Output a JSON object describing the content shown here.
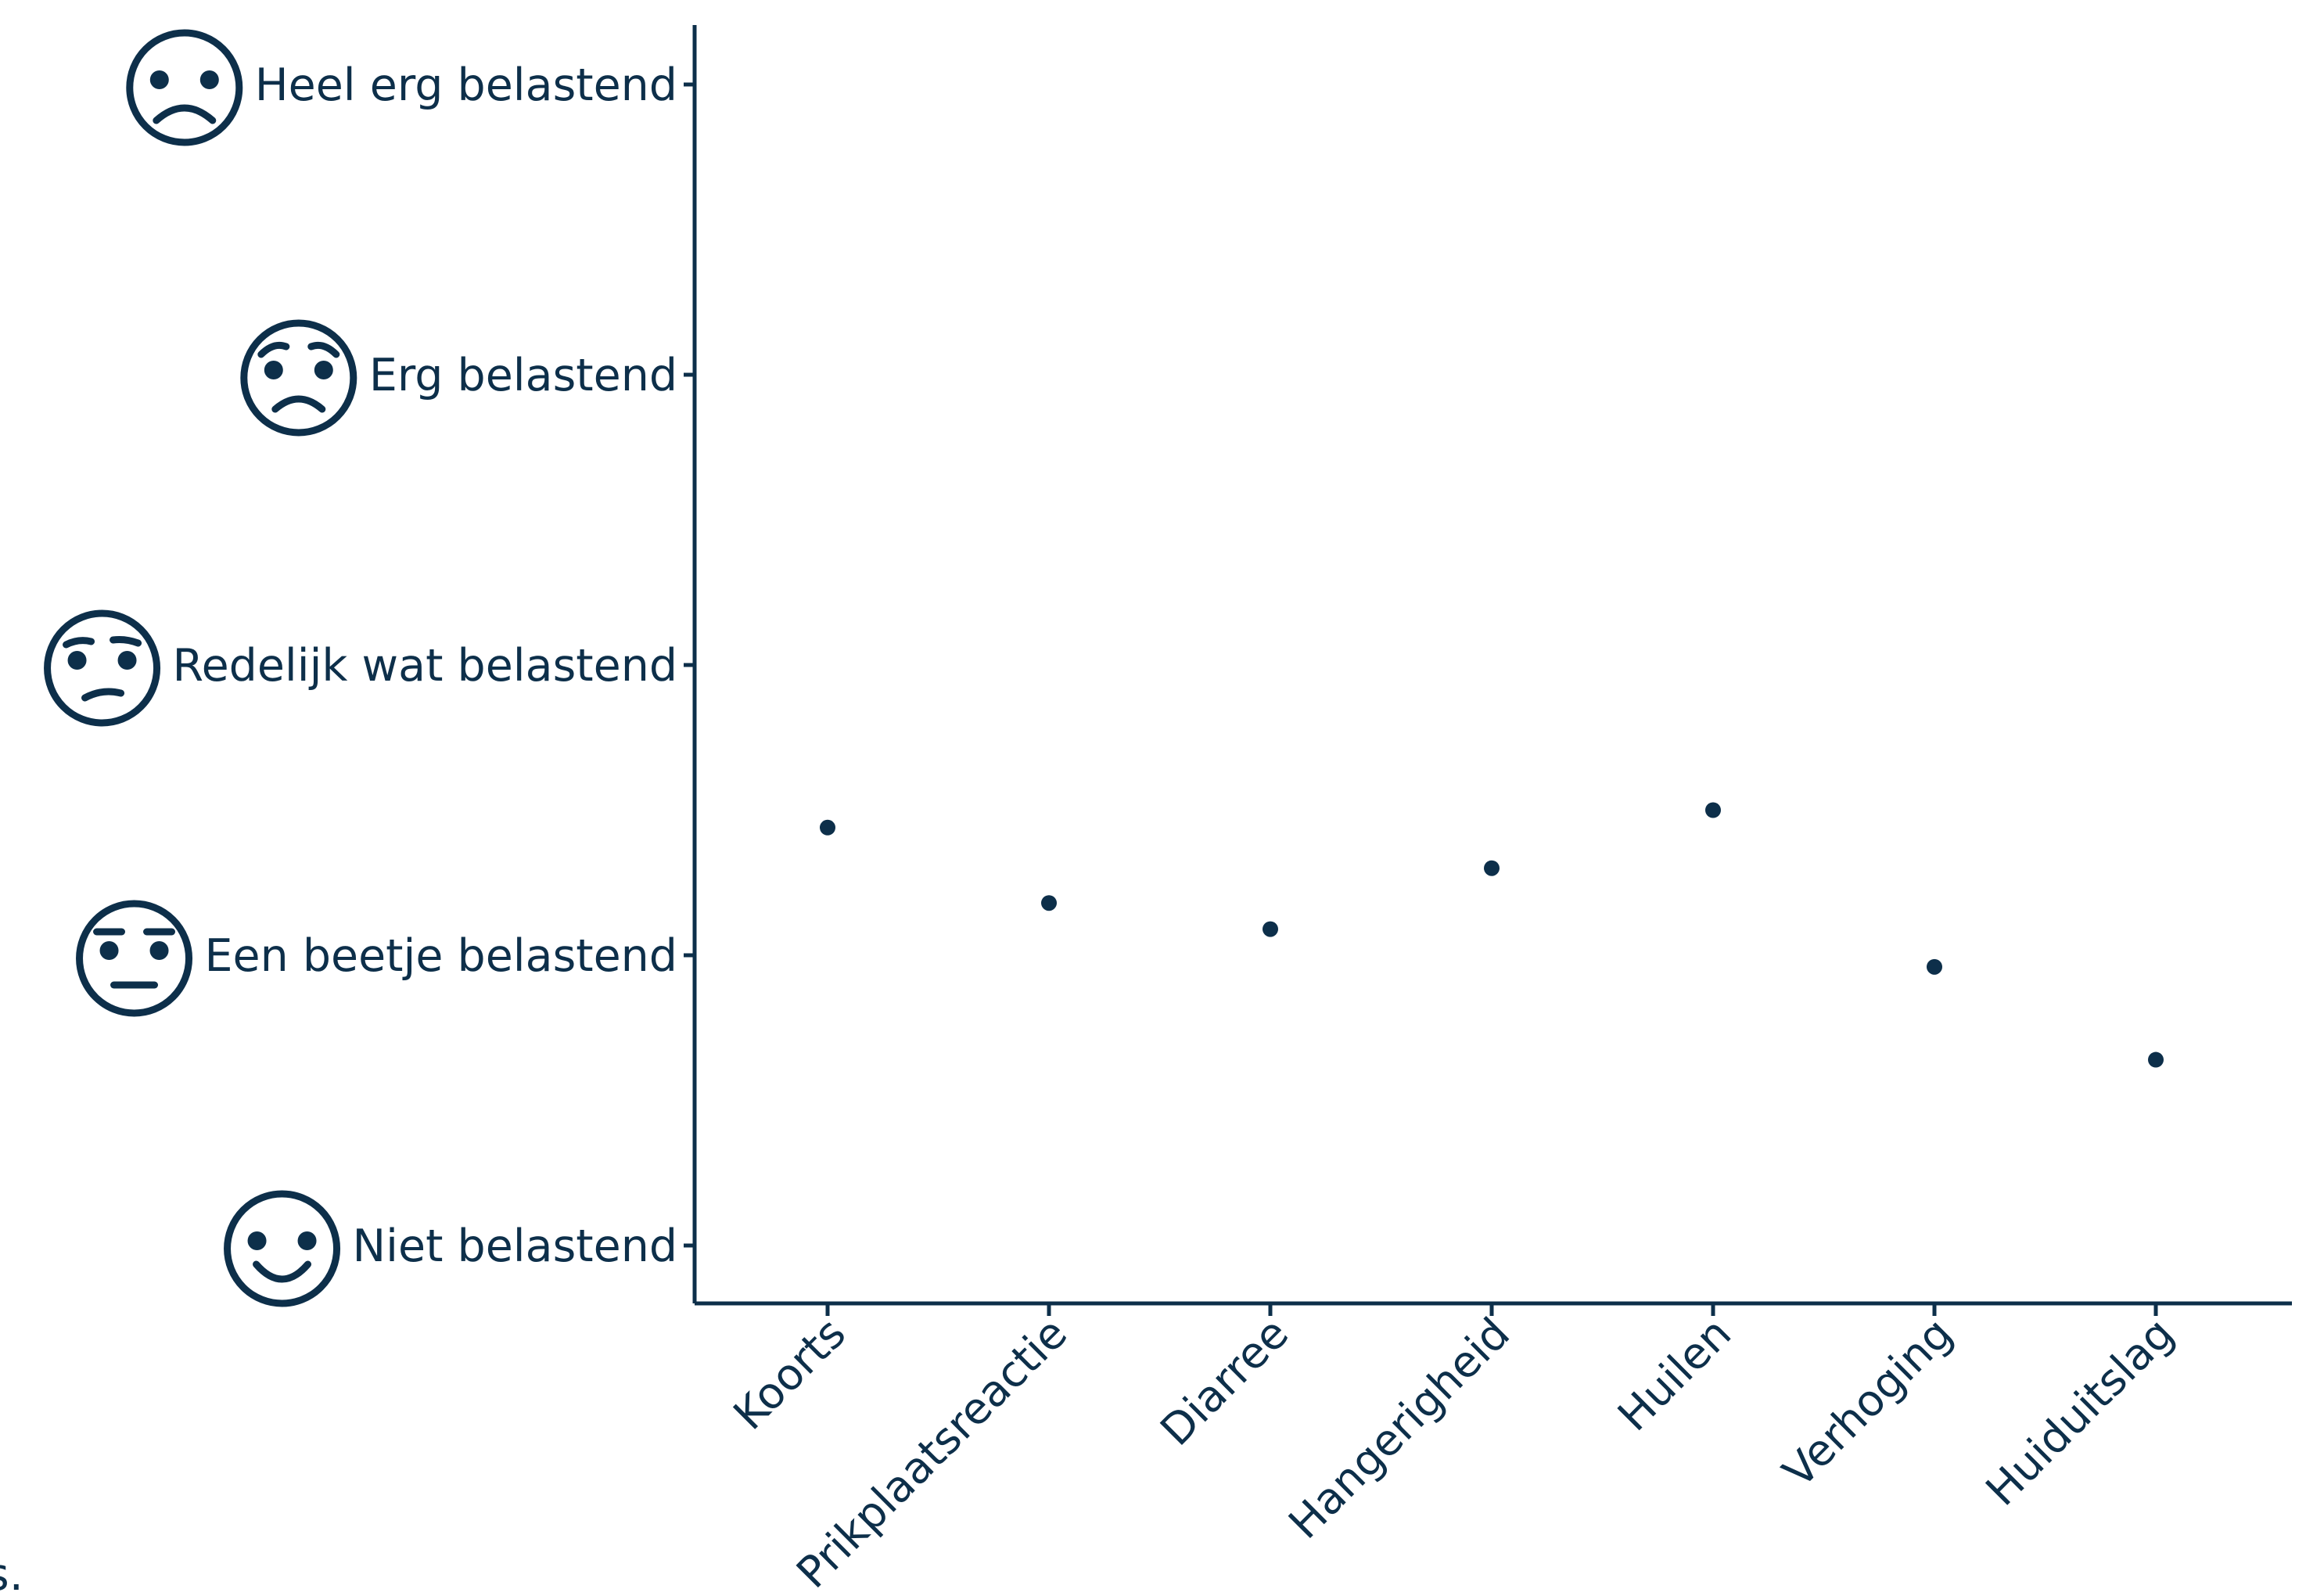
{
  "chart_data": {
    "type": "scatter",
    "title": "",
    "xlabel": "",
    "ylabel": "",
    "categories": [
      "Koorts",
      "Prikplaatsreactie",
      "Diarree",
      "Hangerigheid",
      "Huilen",
      "Verhoging",
      "Huiduitslag"
    ],
    "values": [
      1.44,
      1.18,
      1.09,
      1.3,
      1.5,
      0.96,
      0.64
    ],
    "y_ticks": [
      {
        "value": 0,
        "label": "Niet belastend",
        "icon": "smiling-face-icon"
      },
      {
        "value": 1,
        "label": "Een beetje belastend",
        "icon": "neutral-face-icon"
      },
      {
        "value": 2,
        "label": "Redelijk wat belastend",
        "icon": "confused-face-icon"
      },
      {
        "value": 3,
        "label": "Erg belastend",
        "icon": "worried-face-icon"
      },
      {
        "value": 4,
        "label": "Heel erg belastend",
        "icon": "frowning-face-icon"
      }
    ],
    "ylim": [
      -0.2,
      4.2
    ],
    "grid": false,
    "legend": "none",
    "colors": {
      "ink": "#0d2f4a",
      "background": "#ffffff"
    }
  },
  "fragment": "s."
}
